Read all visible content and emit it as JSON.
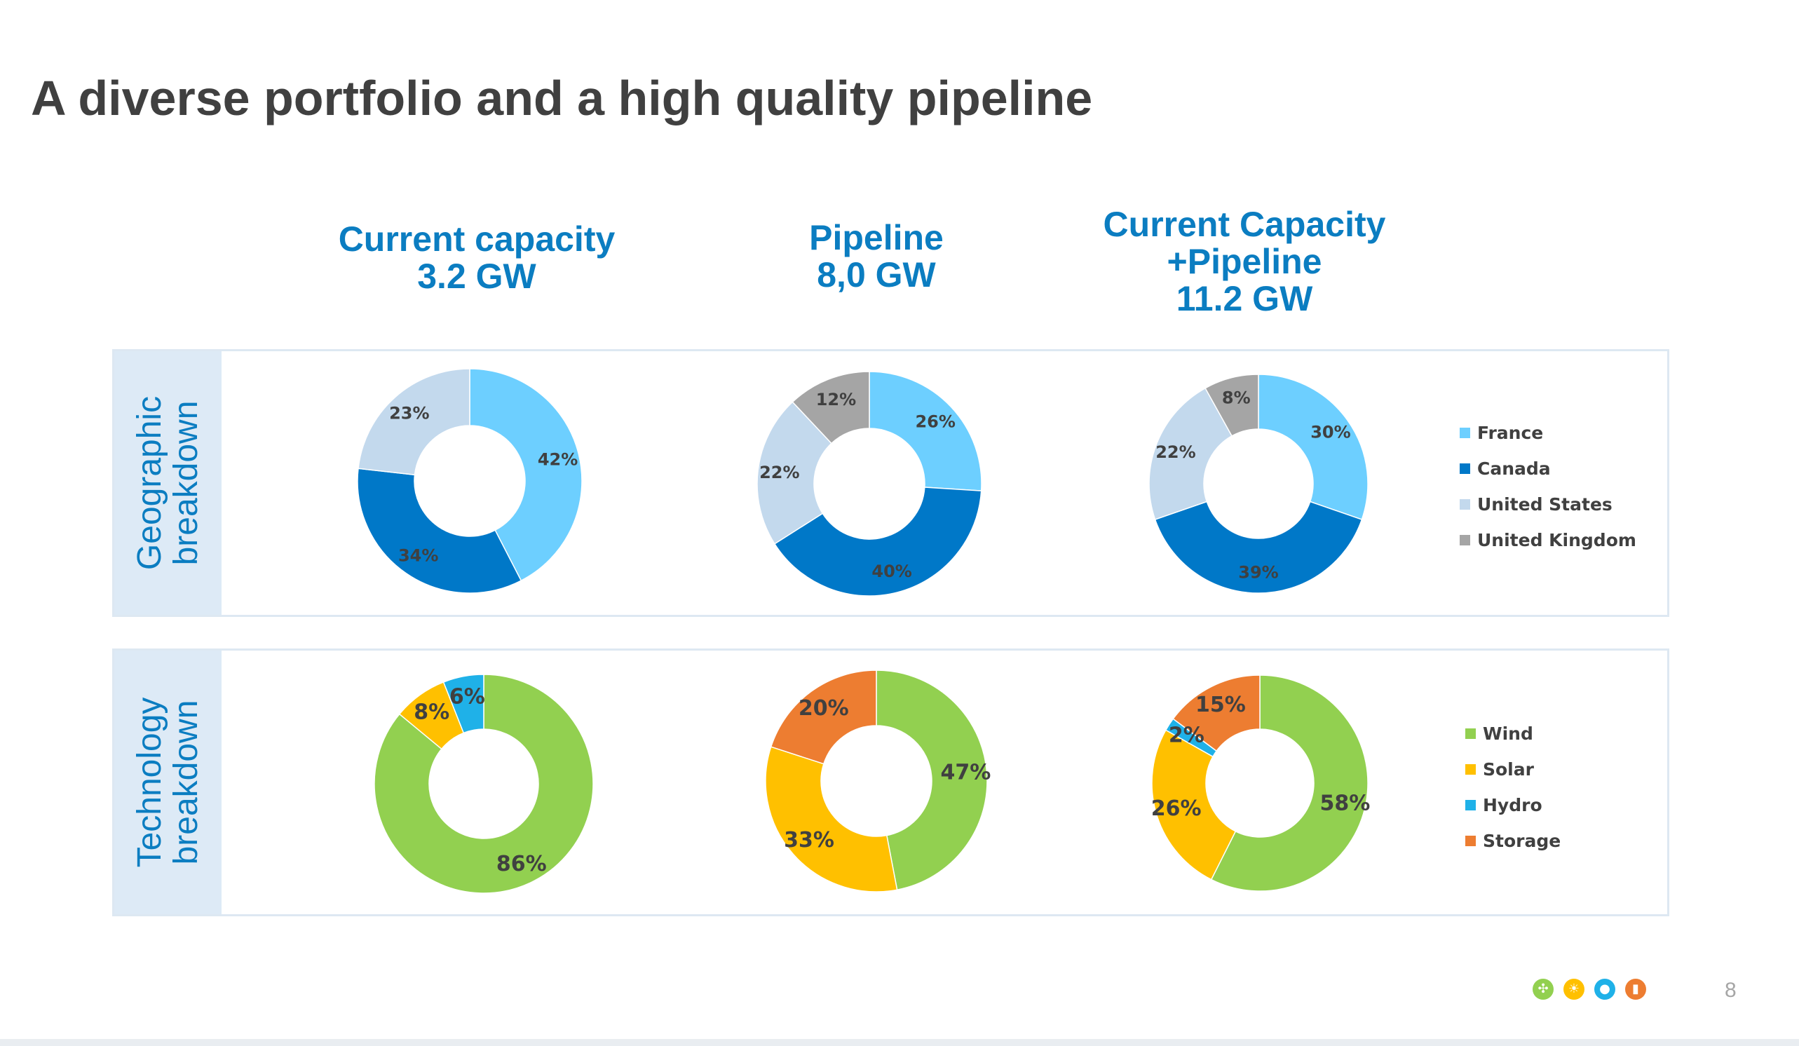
{
  "slide": {
    "title": "A diverse portfolio and a high quality pipeline",
    "page_number": "8"
  },
  "columns": [
    {
      "lines": [
        "Current capacity",
        "3.2 GW"
      ]
    },
    {
      "lines": [
        "Pipeline",
        "8,0 GW"
      ]
    },
    {
      "lines": [
        "Current Capacity",
        "+Pipeline",
        "11.2 GW"
      ]
    }
  ],
  "rows": {
    "geographic": {
      "lines": [
        "Geographic",
        "breakdown"
      ]
    },
    "technology": {
      "lines": [
        "Technology",
        "breakdown"
      ]
    }
  },
  "colors": {
    "accent": "#0b7dc1",
    "france": "#6dcfff",
    "canada": "#0078c8",
    "united_states": "#c3d9ed",
    "united_kingdom": "#a5a5a5",
    "wind": "#92d050",
    "solar": "#ffc000",
    "hydro": "#1fb1e8",
    "storage": "#ed7d31"
  },
  "footer_icons": [
    {
      "name": "wind-turbine-icon",
      "glyph": "✣",
      "color": "#92d050"
    },
    {
      "name": "sun-icon",
      "glyph": "☀",
      "color": "#ffc000"
    },
    {
      "name": "water-drop-icon",
      "glyph": "●",
      "color": "#1fb1e8"
    },
    {
      "name": "battery-icon",
      "glyph": "▮",
      "color": "#ed7d31"
    }
  ],
  "chart_data": [
    {
      "type": "pie",
      "variant": "donut",
      "row": "geographic",
      "column": "Current capacity 3.2 GW",
      "categories": [
        "France",
        "Canada",
        "United States",
        "United Kingdom"
      ],
      "values": [
        42,
        34,
        23,
        0
      ],
      "labels": [
        "42%",
        "34%",
        "23%",
        ""
      ]
    },
    {
      "type": "pie",
      "variant": "donut",
      "row": "geographic",
      "column": "Pipeline 8,0 GW",
      "categories": [
        "France",
        "Canada",
        "United States",
        "United Kingdom"
      ],
      "values": [
        26,
        40,
        22,
        12
      ],
      "labels": [
        "26%",
        "40%",
        "22%",
        "12%"
      ]
    },
    {
      "type": "pie",
      "variant": "donut",
      "row": "geographic",
      "column": "Current Capacity +Pipeline 11.2 GW",
      "categories": [
        "France",
        "Canada",
        "United States",
        "United Kingdom"
      ],
      "values": [
        30,
        39,
        22,
        8
      ],
      "labels": [
        "30%",
        "39%",
        "22%",
        "8%"
      ]
    },
    {
      "type": "pie",
      "variant": "donut",
      "row": "technology",
      "column": "Current capacity 3.2 GW",
      "categories": [
        "Wind",
        "Solar",
        "Hydro",
        "Storage"
      ],
      "values": [
        86,
        8,
        6,
        0
      ],
      "labels": [
        "86%",
        "8%",
        "6%",
        ""
      ]
    },
    {
      "type": "pie",
      "variant": "donut",
      "row": "technology",
      "column": "Pipeline 8,0 GW",
      "categories": [
        "Wind",
        "Solar",
        "Hydro",
        "Storage"
      ],
      "values": [
        47,
        33,
        0,
        20
      ],
      "labels": [
        "47%",
        "33%",
        "",
        "20%"
      ]
    },
    {
      "type": "pie",
      "variant": "donut",
      "row": "technology",
      "column": "Current Capacity +Pipeline 11.2 GW",
      "categories": [
        "Wind",
        "Solar",
        "Hydro",
        "Storage"
      ],
      "values": [
        58,
        26,
        2,
        15
      ],
      "labels": [
        "58%",
        "26%",
        "2%",
        "15%"
      ]
    }
  ],
  "legends": {
    "geographic": [
      "France",
      "Canada",
      "United States",
      "United Kingdom"
    ],
    "technology": [
      "Wind",
      "Solar",
      "Hydro",
      "Storage"
    ]
  }
}
